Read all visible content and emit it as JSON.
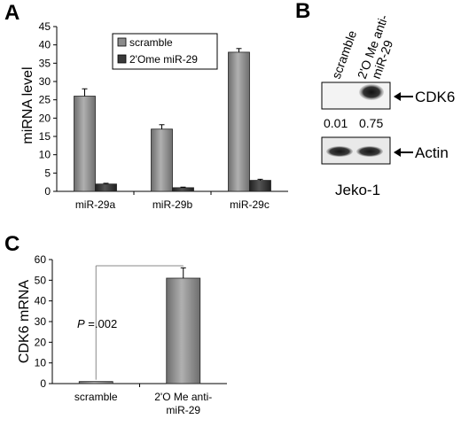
{
  "panels": {
    "A": {
      "letter": "A"
    },
    "B": {
      "letter": "B"
    },
    "C": {
      "letter": "C"
    }
  },
  "chart_data": [
    {
      "panel": "A",
      "type": "bar",
      "title": "",
      "xlabel": "",
      "ylabel": "miRNA  level",
      "ylim": [
        0,
        45
      ],
      "yticks": [
        0,
        5,
        10,
        15,
        20,
        25,
        30,
        35,
        40,
        45
      ],
      "categories": [
        "miR-29a",
        "miR-29b",
        "miR-29c"
      ],
      "series": [
        {
          "name": "scramble",
          "color": "#8c8c8c",
          "values": [
            26,
            17,
            38
          ],
          "errors": [
            2,
            1.2,
            1
          ]
        },
        {
          "name": "2'Ome miR-29",
          "color": "#3a3a3a",
          "values": [
            2,
            1,
            3
          ],
          "errors": [
            0.2,
            0.15,
            0.3
          ]
        }
      ],
      "legend": "top-right",
      "grid": false
    },
    {
      "panel": "C",
      "type": "bar",
      "title": "",
      "xlabel": "",
      "ylabel": "CDK6 mRNA",
      "ylim": [
        0,
        60
      ],
      "yticks": [
        0,
        10,
        20,
        30,
        40,
        50,
        60
      ],
      "categories": [
        "scramble",
        "2'O Me anti-\nmiR-29"
      ],
      "category_lines": [
        [
          "scramble"
        ],
        [
          "2'O Me anti-",
          "miR-29"
        ]
      ],
      "series": [
        {
          "name": "",
          "color": "#8c8c8c",
          "values": [
            1,
            51
          ],
          "errors": [
            0,
            5
          ]
        }
      ],
      "annotation": {
        "p_italic": "P",
        "p_rest": " =.002"
      },
      "grid": false
    }
  ],
  "blot": {
    "lanes": [
      "scramble",
      "2'O Me anti-",
      "miR-29"
    ],
    "band_labels": [
      "CDK6",
      "Actin"
    ],
    "quant": [
      "0.01",
      "0.75"
    ],
    "cell_line": "Jeko-1"
  }
}
